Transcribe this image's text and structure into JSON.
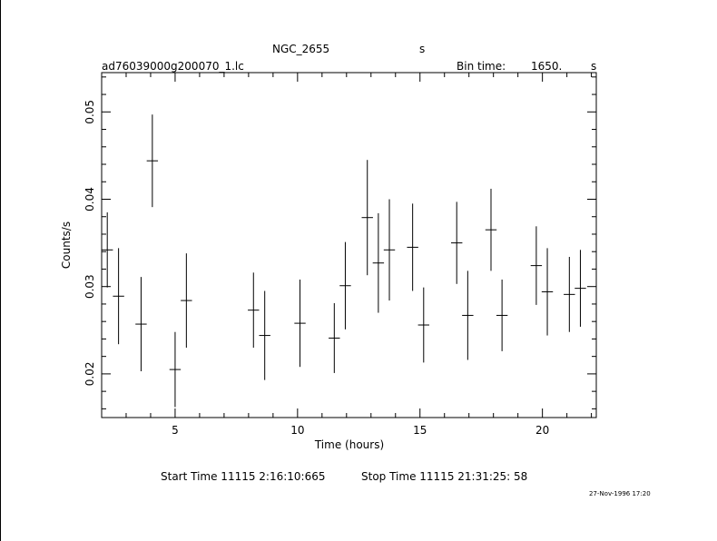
{
  "header": {
    "object": "NGC_2655",
    "unit_top": "s",
    "filename": "ad76039000g200070_1.lc",
    "bin_label": "Bin time:",
    "bin_value": "1650.",
    "bin_unit": "s"
  },
  "footer": {
    "start_label": "Start Time 11115  2:16:10:665",
    "stop_label": "Stop Time 11115 21:31:25: 58",
    "stamp": "27-Nov-1996 17:20"
  },
  "chart_data": {
    "type": "scatter",
    "title": "NGC_2655",
    "xlabel": "Time (hours)",
    "ylabel": "Counts/s",
    "xlim": [
      2.0,
      22.2
    ],
    "ylim": [
      0.015,
      0.0545
    ],
    "x_ticks": [
      5,
      10,
      15,
      20
    ],
    "y_ticks": [
      0.02,
      0.03,
      0.04,
      0.05
    ],
    "x_tick_labels": [
      "5",
      "10",
      "15",
      "20"
    ],
    "y_tick_labels": [
      "0.02",
      "0.03",
      "0.04",
      "0.05"
    ],
    "x_bin_halfwidth": 0.23,
    "points": [
      {
        "x": 2.23,
        "y": 0.0342,
        "yerr": 0.0043
      },
      {
        "x": 2.69,
        "y": 0.0289,
        "yerr": 0.0055
      },
      {
        "x": 3.61,
        "y": 0.0257,
        "yerr": 0.0054
      },
      {
        "x": 4.07,
        "y": 0.0444,
        "yerr": 0.0053
      },
      {
        "x": 5.0,
        "y": 0.0205,
        "yerr": 0.0043
      },
      {
        "x": 5.46,
        "y": 0.0284,
        "yerr": 0.0054
      },
      {
        "x": 8.2,
        "y": 0.0273,
        "yerr": 0.0043
      },
      {
        "x": 8.66,
        "y": 0.0244,
        "yerr": 0.0051
      },
      {
        "x": 10.1,
        "y": 0.0258,
        "yerr": 0.005
      },
      {
        "x": 11.5,
        "y": 0.0241,
        "yerr": 0.004
      },
      {
        "x": 11.95,
        "y": 0.0301,
        "yerr": 0.005
      },
      {
        "x": 12.85,
        "y": 0.0379,
        "yerr": 0.0066
      },
      {
        "x": 13.3,
        "y": 0.0327,
        "yerr": 0.0057
      },
      {
        "x": 13.75,
        "y": 0.0342,
        "yerr": 0.0058
      },
      {
        "x": 14.7,
        "y": 0.0345,
        "yerr": 0.005
      },
      {
        "x": 15.15,
        "y": 0.0256,
        "yerr": 0.0043
      },
      {
        "x": 16.5,
        "y": 0.035,
        "yerr": 0.0047
      },
      {
        "x": 16.95,
        "y": 0.0267,
        "yerr": 0.0051
      },
      {
        "x": 17.9,
        "y": 0.0365,
        "yerr": 0.0047
      },
      {
        "x": 18.35,
        "y": 0.0267,
        "yerr": 0.0041
      },
      {
        "x": 19.75,
        "y": 0.0324,
        "yerr": 0.0045
      },
      {
        "x": 20.2,
        "y": 0.0294,
        "yerr": 0.005
      },
      {
        "x": 21.1,
        "y": 0.0291,
        "yerr": 0.0043
      },
      {
        "x": 21.55,
        "y": 0.0298,
        "yerr": 0.0044
      }
    ],
    "grid": false,
    "colors": {
      "axis": "#000000",
      "marks": "#000000",
      "background": "#ffffff"
    }
  }
}
